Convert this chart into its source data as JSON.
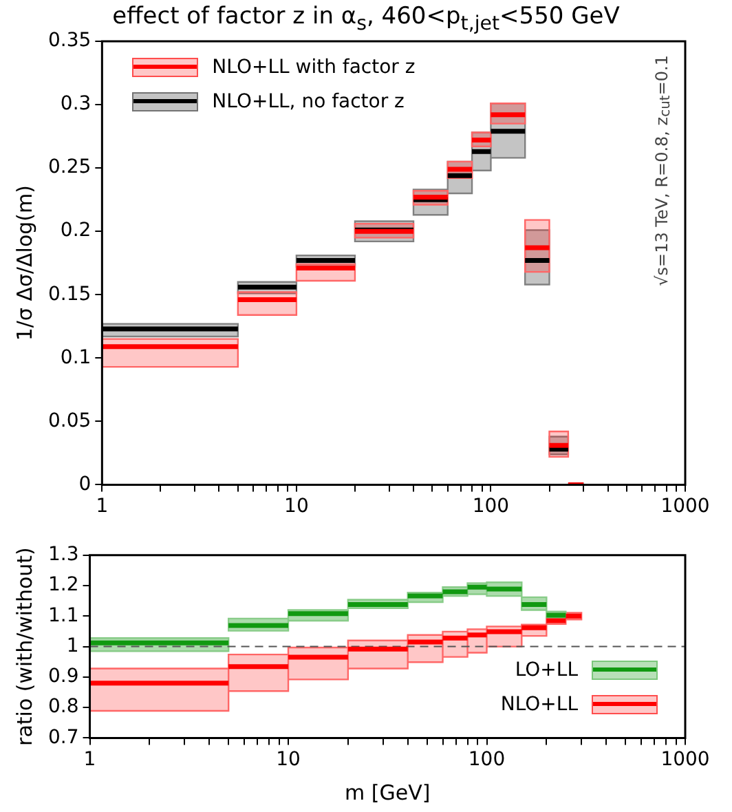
{
  "chart_data": [
    {
      "type": "line",
      "title": "effect of factor z in α$_{s}$, 460<p$_{t,jet}$<550 GeV",
      "ylabel": "1/σ Δσ/Δlog(m)",
      "x": [
        1,
        5,
        null,
        5,
        10,
        null,
        10,
        20,
        null,
        20,
        40,
        null,
        40,
        60,
        null,
        60,
        80,
        null,
        80,
        100,
        null,
        100,
        150,
        null,
        150,
        200,
        null,
        200,
        250,
        null,
        250,
        300
      ],
      "series": [
        {
          "name": "NLO+LL with factor z",
          "color": "#ff0000",
          "values": [
            0.109,
            0.109,
            null,
            0.146,
            0.146,
            null,
            0.171,
            0.171,
            null,
            0.2,
            0.2,
            null,
            0.227,
            0.227,
            null,
            0.249,
            0.249,
            null,
            0.272,
            0.272,
            null,
            0.292,
            0.292,
            null,
            0.187,
            0.187,
            null,
            0.031,
            0.031,
            null,
            0,
            0
          ],
          "lower": [
            0.093,
            0.093,
            null,
            0.134,
            0.134,
            null,
            0.161,
            0.161,
            null,
            0.195,
            0.195,
            null,
            0.221,
            0.221,
            null,
            0.242,
            0.242,
            null,
            0.267,
            0.267,
            null,
            0.285,
            0.285,
            null,
            0.168,
            0.168,
            null,
            0.022,
            0.022,
            null,
            null,
            null
          ],
          "upper": [
            0.115,
            0.115,
            null,
            0.152,
            0.152,
            null,
            0.174,
            0.174,
            null,
            0.206,
            0.206,
            null,
            0.232,
            0.232,
            null,
            0.255,
            0.255,
            null,
            0.278,
            0.278,
            null,
            0.301,
            0.301,
            null,
            0.209,
            0.209,
            null,
            0.042,
            0.042,
            null,
            null,
            null
          ]
        },
        {
          "name": "NLO+LL, no factor z",
          "color": "#000000",
          "values": [
            0.123,
            0.123,
            null,
            0.156,
            0.156,
            null,
            0.177,
            0.177,
            null,
            0.201,
            0.201,
            null,
            0.225,
            0.225,
            null,
            0.244,
            0.244,
            null,
            0.263,
            0.263,
            null,
            0.279,
            0.279,
            null,
            0.177,
            0.177,
            null,
            0.028,
            0.028,
            null,
            0,
            0
          ],
          "lower": [
            0.117,
            0.117,
            null,
            0.151,
            0.151,
            null,
            0.172,
            0.172,
            null,
            0.192,
            0.192,
            null,
            0.213,
            0.213,
            null,
            0.23,
            0.23,
            null,
            0.248,
            0.248,
            null,
            0.258,
            0.258,
            null,
            0.158,
            0.158,
            null,
            0.024,
            0.024,
            null,
            null,
            null
          ],
          "upper": [
            0.127,
            0.127,
            null,
            0.16,
            0.16,
            null,
            0.181,
            0.181,
            null,
            0.208,
            0.208,
            null,
            0.233,
            0.233,
            null,
            0.255,
            0.255,
            null,
            0.278,
            0.278,
            null,
            0.301,
            0.301,
            null,
            0.201,
            0.201,
            null,
            0.038,
            0.038,
            null,
            null,
            null
          ]
        }
      ],
      "xlim": [
        1,
        1000
      ],
      "xticks": [
        1,
        {
          "value": 2,
          "label": null
        },
        {
          "value": 3,
          "label": null
        },
        {
          "value": 4,
          "label": null
        },
        {
          "value": 5,
          "label": null
        },
        {
          "value": 6,
          "label": null
        },
        {
          "value": 7,
          "label": null
        },
        {
          "value": 8,
          "label": null
        },
        {
          "value": 9,
          "label": null
        },
        10,
        {
          "value": 20,
          "label": null
        },
        {
          "value": 30,
          "label": null
        },
        {
          "value": 40,
          "label": null
        },
        {
          "value": 50,
          "label": null
        },
        {
          "value": 60,
          "label": null
        },
        {
          "value": 70,
          "label": null
        },
        {
          "value": 80,
          "label": null
        },
        {
          "value": 90,
          "label": null
        },
        100,
        {
          "value": 200,
          "label": null
        },
        {
          "value": 300,
          "label": null
        },
        {
          "value": 400,
          "label": null
        },
        {
          "value": 500,
          "label": null
        },
        {
          "value": 600,
          "label": null
        },
        {
          "value": 700,
          "label": null
        },
        {
          "value": 800,
          "label": null
        },
        {
          "value": 900,
          "label": null
        },
        1000
      ],
      "ylim": [
        0,
        0.35
      ],
      "yticks": [
        0,
        0.05,
        0.1,
        0.15,
        0.2,
        0.25,
        0.3,
        0.35
      ],
      "log": "x",
      "grid": false,
      "legend": "top left",
      "marker": "none",
      "annotations": [
        "√s=13 TeV, R=0.8, z$_{cut}$=0.1"
      ]
    },
    {
      "type": "line",
      "xlabel": "m [GeV]",
      "ylabel": "ratio (with/without)",
      "x": [
        1,
        5,
        null,
        5,
        10,
        null,
        10,
        20,
        null,
        20,
        40,
        null,
        40,
        60,
        null,
        60,
        80,
        null,
        80,
        100,
        null,
        100,
        150,
        null,
        150,
        200,
        null,
        200,
        250,
        null,
        250,
        300
      ],
      "series": [
        {
          "name": "LO+LL",
          "color": "#119911",
          "values": [
            1.012,
            1.012,
            null,
            1.069,
            1.069,
            null,
            1.108,
            1.108,
            null,
            1.138,
            1.138,
            null,
            1.166,
            1.166,
            null,
            1.18,
            1.18,
            null,
            1.195,
            1.195,
            null,
            1.189,
            1.189,
            null,
            1.138,
            1.138,
            null,
            1.103,
            1.103,
            null,
            null,
            null
          ],
          "lower": [
            0.985,
            0.985,
            null,
            1.052,
            1.052,
            null,
            1.085,
            1.085,
            null,
            1.126,
            1.126,
            null,
            1.146,
            1.146,
            null,
            1.166,
            1.166,
            null,
            1.172,
            1.172,
            null,
            1.166,
            1.166,
            null,
            1.12,
            1.12,
            null,
            1.095,
            1.095,
            null,
            null,
            null
          ],
          "upper": [
            1.028,
            1.028,
            null,
            1.092,
            1.092,
            null,
            1.12,
            1.12,
            null,
            1.154,
            1.154,
            null,
            1.177,
            1.177,
            null,
            1.195,
            1.195,
            null,
            1.208,
            1.208,
            null,
            1.211,
            1.211,
            null,
            1.162,
            1.162,
            null,
            1.115,
            1.115,
            null,
            null,
            null
          ]
        },
        {
          "name": "NLO+LL",
          "color": "#ff0000",
          "values": [
            0.88,
            0.88,
            null,
            0.934,
            0.934,
            null,
            0.965,
            0.965,
            null,
            0.992,
            0.992,
            null,
            1.015,
            1.015,
            null,
            1.028,
            1.028,
            null,
            1.038,
            1.038,
            null,
            1.049,
            1.049,
            null,
            1.062,
            1.062,
            null,
            1.085,
            1.085,
            null,
            1.1,
            1.1
          ],
          "lower": [
            0.789,
            0.789,
            null,
            0.854,
            0.854,
            null,
            0.892,
            0.892,
            null,
            0.928,
            0.928,
            null,
            0.949,
            0.949,
            null,
            0.966,
            0.966,
            null,
            0.98,
            0.98,
            null,
            1.0,
            1.0,
            null,
            1.035,
            1.035,
            null,
            1.074,
            1.074,
            null,
            1.089,
            1.089
          ],
          "upper": [
            0.928,
            0.928,
            null,
            0.974,
            0.974,
            null,
            0.997,
            0.997,
            null,
            1.02,
            1.02,
            null,
            1.038,
            1.038,
            null,
            1.049,
            1.049,
            null,
            1.057,
            1.057,
            null,
            1.066,
            1.066,
            null,
            1.072,
            1.072,
            null,
            1.097,
            1.097,
            null,
            1.111,
            1.111
          ]
        }
      ],
      "xlim": [
        1,
        1000
      ],
      "xticks": [
        1,
        {
          "value": 2,
          "label": null
        },
        {
          "value": 3,
          "label": null
        },
        {
          "value": 4,
          "label": null
        },
        {
          "value": 5,
          "label": null
        },
        {
          "value": 6,
          "label": null
        },
        {
          "value": 7,
          "label": null
        },
        {
          "value": 8,
          "label": null
        },
        {
          "value": 9,
          "label": null
        },
        10,
        {
          "value": 20,
          "label": null
        },
        {
          "value": 30,
          "label": null
        },
        {
          "value": 40,
          "label": null
        },
        {
          "value": 50,
          "label": null
        },
        {
          "value": 60,
          "label": null
        },
        {
          "value": 70,
          "label": null
        },
        {
          "value": 80,
          "label": null
        },
        {
          "value": 90,
          "label": null
        },
        100,
        {
          "value": 200,
          "label": null
        },
        {
          "value": 300,
          "label": null
        },
        {
          "value": 400,
          "label": null
        },
        {
          "value": 500,
          "label": null
        },
        {
          "value": 600,
          "label": null
        },
        {
          "value": 700,
          "label": null
        },
        {
          "value": 800,
          "label": null
        },
        {
          "value": 900,
          "label": null
        },
        1000
      ],
      "ylim": [
        0.7,
        1.3
      ],
      "yticks": [
        0.7,
        0.8,
        0.9,
        1,
        1.1,
        1.2,
        1.3
      ],
      "log": "x",
      "grid": false,
      "legend": "bottom right",
      "marker": "none",
      "ref_lines": [
        {
          "axis": "y",
          "value": 1,
          "color": "#555555",
          "line_style": "dashed"
        }
      ]
    }
  ]
}
